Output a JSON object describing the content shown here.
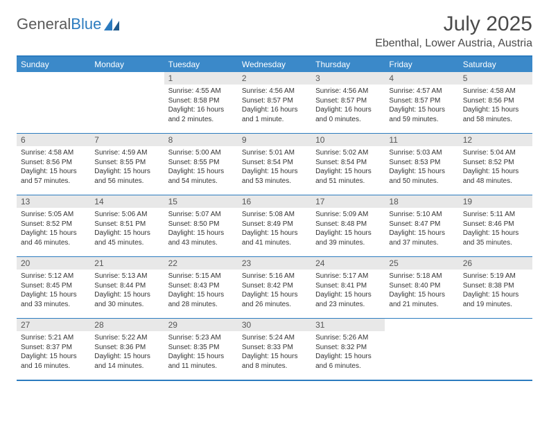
{
  "logo": {
    "word1": "General",
    "word2": "Blue"
  },
  "title": "July 2025",
  "location": "Ebenthal, Lower Austria, Austria",
  "colors": {
    "header_bg": "#3b89c9",
    "border": "#2b7bbf",
    "daynum_bg": "#e8e8e8",
    "text": "#333333"
  },
  "weekdays": [
    "Sunday",
    "Monday",
    "Tuesday",
    "Wednesday",
    "Thursday",
    "Friday",
    "Saturday"
  ],
  "weeks": [
    [
      {
        "n": "",
        "sunrise": "",
        "sunset": "",
        "daylight": ""
      },
      {
        "n": "",
        "sunrise": "",
        "sunset": "",
        "daylight": ""
      },
      {
        "n": "1",
        "sunrise": "Sunrise: 4:55 AM",
        "sunset": "Sunset: 8:58 PM",
        "daylight": "Daylight: 16 hours and 2 minutes."
      },
      {
        "n": "2",
        "sunrise": "Sunrise: 4:56 AM",
        "sunset": "Sunset: 8:57 PM",
        "daylight": "Daylight: 16 hours and 1 minute."
      },
      {
        "n": "3",
        "sunrise": "Sunrise: 4:56 AM",
        "sunset": "Sunset: 8:57 PM",
        "daylight": "Daylight: 16 hours and 0 minutes."
      },
      {
        "n": "4",
        "sunrise": "Sunrise: 4:57 AM",
        "sunset": "Sunset: 8:57 PM",
        "daylight": "Daylight: 15 hours and 59 minutes."
      },
      {
        "n": "5",
        "sunrise": "Sunrise: 4:58 AM",
        "sunset": "Sunset: 8:56 PM",
        "daylight": "Daylight: 15 hours and 58 minutes."
      }
    ],
    [
      {
        "n": "6",
        "sunrise": "Sunrise: 4:58 AM",
        "sunset": "Sunset: 8:56 PM",
        "daylight": "Daylight: 15 hours and 57 minutes."
      },
      {
        "n": "7",
        "sunrise": "Sunrise: 4:59 AM",
        "sunset": "Sunset: 8:55 PM",
        "daylight": "Daylight: 15 hours and 56 minutes."
      },
      {
        "n": "8",
        "sunrise": "Sunrise: 5:00 AM",
        "sunset": "Sunset: 8:55 PM",
        "daylight": "Daylight: 15 hours and 54 minutes."
      },
      {
        "n": "9",
        "sunrise": "Sunrise: 5:01 AM",
        "sunset": "Sunset: 8:54 PM",
        "daylight": "Daylight: 15 hours and 53 minutes."
      },
      {
        "n": "10",
        "sunrise": "Sunrise: 5:02 AM",
        "sunset": "Sunset: 8:54 PM",
        "daylight": "Daylight: 15 hours and 51 minutes."
      },
      {
        "n": "11",
        "sunrise": "Sunrise: 5:03 AM",
        "sunset": "Sunset: 8:53 PM",
        "daylight": "Daylight: 15 hours and 50 minutes."
      },
      {
        "n": "12",
        "sunrise": "Sunrise: 5:04 AM",
        "sunset": "Sunset: 8:52 PM",
        "daylight": "Daylight: 15 hours and 48 minutes."
      }
    ],
    [
      {
        "n": "13",
        "sunrise": "Sunrise: 5:05 AM",
        "sunset": "Sunset: 8:52 PM",
        "daylight": "Daylight: 15 hours and 46 minutes."
      },
      {
        "n": "14",
        "sunrise": "Sunrise: 5:06 AM",
        "sunset": "Sunset: 8:51 PM",
        "daylight": "Daylight: 15 hours and 45 minutes."
      },
      {
        "n": "15",
        "sunrise": "Sunrise: 5:07 AM",
        "sunset": "Sunset: 8:50 PM",
        "daylight": "Daylight: 15 hours and 43 minutes."
      },
      {
        "n": "16",
        "sunrise": "Sunrise: 5:08 AM",
        "sunset": "Sunset: 8:49 PM",
        "daylight": "Daylight: 15 hours and 41 minutes."
      },
      {
        "n": "17",
        "sunrise": "Sunrise: 5:09 AM",
        "sunset": "Sunset: 8:48 PM",
        "daylight": "Daylight: 15 hours and 39 minutes."
      },
      {
        "n": "18",
        "sunrise": "Sunrise: 5:10 AM",
        "sunset": "Sunset: 8:47 PM",
        "daylight": "Daylight: 15 hours and 37 minutes."
      },
      {
        "n": "19",
        "sunrise": "Sunrise: 5:11 AM",
        "sunset": "Sunset: 8:46 PM",
        "daylight": "Daylight: 15 hours and 35 minutes."
      }
    ],
    [
      {
        "n": "20",
        "sunrise": "Sunrise: 5:12 AM",
        "sunset": "Sunset: 8:45 PM",
        "daylight": "Daylight: 15 hours and 33 minutes."
      },
      {
        "n": "21",
        "sunrise": "Sunrise: 5:13 AM",
        "sunset": "Sunset: 8:44 PM",
        "daylight": "Daylight: 15 hours and 30 minutes."
      },
      {
        "n": "22",
        "sunrise": "Sunrise: 5:15 AM",
        "sunset": "Sunset: 8:43 PM",
        "daylight": "Daylight: 15 hours and 28 minutes."
      },
      {
        "n": "23",
        "sunrise": "Sunrise: 5:16 AM",
        "sunset": "Sunset: 8:42 PM",
        "daylight": "Daylight: 15 hours and 26 minutes."
      },
      {
        "n": "24",
        "sunrise": "Sunrise: 5:17 AM",
        "sunset": "Sunset: 8:41 PM",
        "daylight": "Daylight: 15 hours and 23 minutes."
      },
      {
        "n": "25",
        "sunrise": "Sunrise: 5:18 AM",
        "sunset": "Sunset: 8:40 PM",
        "daylight": "Daylight: 15 hours and 21 minutes."
      },
      {
        "n": "26",
        "sunrise": "Sunrise: 5:19 AM",
        "sunset": "Sunset: 8:38 PM",
        "daylight": "Daylight: 15 hours and 19 minutes."
      }
    ],
    [
      {
        "n": "27",
        "sunrise": "Sunrise: 5:21 AM",
        "sunset": "Sunset: 8:37 PM",
        "daylight": "Daylight: 15 hours and 16 minutes."
      },
      {
        "n": "28",
        "sunrise": "Sunrise: 5:22 AM",
        "sunset": "Sunset: 8:36 PM",
        "daylight": "Daylight: 15 hours and 14 minutes."
      },
      {
        "n": "29",
        "sunrise": "Sunrise: 5:23 AM",
        "sunset": "Sunset: 8:35 PM",
        "daylight": "Daylight: 15 hours and 11 minutes."
      },
      {
        "n": "30",
        "sunrise": "Sunrise: 5:24 AM",
        "sunset": "Sunset: 8:33 PM",
        "daylight": "Daylight: 15 hours and 8 minutes."
      },
      {
        "n": "31",
        "sunrise": "Sunrise: 5:26 AM",
        "sunset": "Sunset: 8:32 PM",
        "daylight": "Daylight: 15 hours and 6 minutes."
      },
      {
        "n": "",
        "sunrise": "",
        "sunset": "",
        "daylight": ""
      },
      {
        "n": "",
        "sunrise": "",
        "sunset": "",
        "daylight": ""
      }
    ]
  ]
}
